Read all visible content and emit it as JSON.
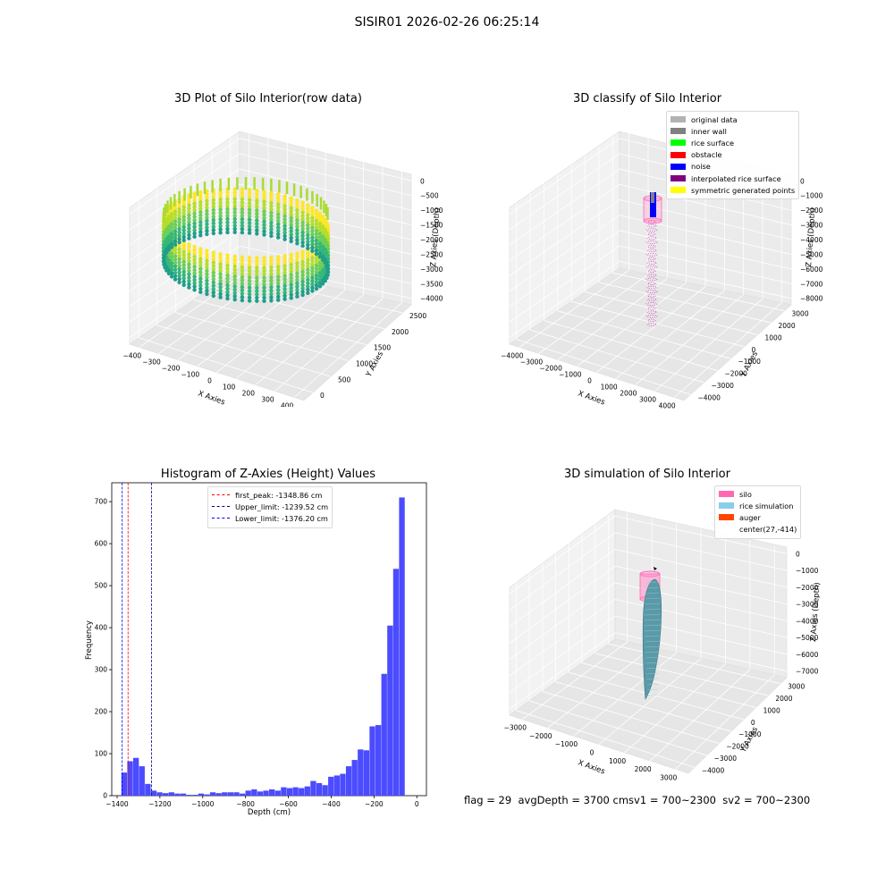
{
  "figure": {
    "suptitle": "SISIR01 2026-02-26 06:25:14",
    "footer": "flag = 29  avgDepth = 3700 cmsv1 = 700~2300  sv2 = 700~2300"
  },
  "chart_data": [
    {
      "type": "scatter",
      "projection": "3d",
      "title": "3D Plot of Silo Interior(row data)",
      "xlabel": "X Axies",
      "ylabel": "Y Axies",
      "zlabel": "Z Axies (Depth)",
      "x_ticks": [
        "−400",
        "−300",
        "−200",
        "−100",
        "0",
        "100",
        "200",
        "300",
        "400"
      ],
      "y_ticks": [
        "0",
        "500",
        "1000",
        "1500",
        "2000",
        "2500"
      ],
      "z_ticks": [
        "0",
        "−500",
        "−1000",
        "−1500",
        "−2000",
        "−2500",
        "−3000",
        "−3500",
        "−4000"
      ],
      "xlim": [
        -420,
        420
      ],
      "ylim": [
        -150,
        2700
      ],
      "zlim": [
        -4200,
        200
      ],
      "colormap": "viridis",
      "description_shape": "ring of points at silo wall"
    },
    {
      "type": "scatter",
      "projection": "3d",
      "title": "3D classify of Silo Interior",
      "zlabel": "Z Axies (Depth)",
      "xlabel": "X Axies",
      "ylabel": "Y Axies",
      "x_ticks": [
        "−4000",
        "−3000",
        "−2000",
        "−1000",
        "0",
        "1000",
        "2000",
        "3000",
        "4000"
      ],
      "y_ticks": [
        "−4000",
        "−3000",
        "−2000",
        "−1000",
        "0",
        "1000",
        "2000",
        "3000"
      ],
      "z_ticks": [
        "0",
        "−1000",
        "−2000",
        "−3000",
        "−4000",
        "−5000",
        "−6000",
        "−7000",
        "−8000"
      ],
      "legend": {
        "placement": "top-right",
        "entries": [
          {
            "label": "original data",
            "color": "#b3b3b3"
          },
          {
            "label": "inner wall",
            "color": "#808080"
          },
          {
            "label": "rice surface",
            "color": "#00ff00"
          },
          {
            "label": "obstacle",
            "color": "#ff0000"
          },
          {
            "label": "noise",
            "color": "#0000ff"
          },
          {
            "label": "interpolated rice surface",
            "color": "#800080"
          },
          {
            "label": "symmetric generated points",
            "color": "#ffff00"
          }
        ]
      }
    },
    {
      "type": "bar",
      "title": "Histogram of Z-Axies (Height) Values",
      "xlabel": "Depth (cm)",
      "ylabel": "Frequency",
      "xlim": [
        -1425,
        45
      ],
      "ylim": [
        0,
        745
      ],
      "x_ticks": [
        -1400,
        -1200,
        -1000,
        -800,
        -600,
        -400,
        -200,
        0
      ],
      "x_tick_labels": [
        "−1400",
        "−1200",
        "−1000",
        "−800",
        "−600",
        "−400",
        "−200",
        "0"
      ],
      "y_ticks": [
        0,
        100,
        200,
        300,
        400,
        500,
        600,
        700
      ],
      "bin_start": -1380,
      "bin_width": 27.6,
      "values": [
        55,
        82,
        90,
        70,
        28,
        12,
        8,
        6,
        8,
        5,
        5,
        2,
        2,
        5,
        3,
        8,
        6,
        8,
        8,
        8,
        5,
        12,
        15,
        10,
        12,
        15,
        12,
        20,
        18,
        20,
        18,
        22,
        35,
        30,
        25,
        45,
        48,
        52,
        70,
        85,
        110,
        108,
        165,
        168,
        290,
        405,
        540,
        710
      ],
      "bar_color": "#4b4bff",
      "lines": [
        {
          "label": "first_peak: -1348.86 cm",
          "value": -1348.86,
          "color": "#ff0000"
        },
        {
          "label": "Upper_limit: -1239.52 cm",
          "value": -1239.52,
          "color": "#00008b"
        },
        {
          "label": "Lower_limit: -1376.20 cm",
          "value": -1376.2,
          "color": "#0000ff"
        }
      ],
      "legend": {
        "placement": "top-center"
      }
    },
    {
      "type": "scatter",
      "projection": "3d",
      "title": "3D simulation of Silo Interior",
      "xlabel": "X Axies",
      "ylabel": "Y Axies",
      "zlabel": "Z Axies (Depth)",
      "x_ticks": [
        "−3000",
        "−2000",
        "−1000",
        "0",
        "1000",
        "2000",
        "3000"
      ],
      "y_ticks": [
        "−4000",
        "−3000",
        "−2000",
        "−1000",
        "0",
        "1000",
        "2000",
        "3000"
      ],
      "z_ticks": [
        "0",
        "−1000",
        "−2000",
        "−3000",
        "−4000",
        "−5000",
        "−6000",
        "−7000"
      ],
      "legend": {
        "placement": "top-right",
        "entries": [
          {
            "label": "silo",
            "color": "#ff69b4"
          },
          {
            "label": "rice simulation",
            "color": "#87ceeb"
          },
          {
            "label": "auger",
            "color": "#ff4500"
          },
          {
            "label": "center(27,-414)",
            "color": ""
          }
        ]
      }
    }
  ]
}
